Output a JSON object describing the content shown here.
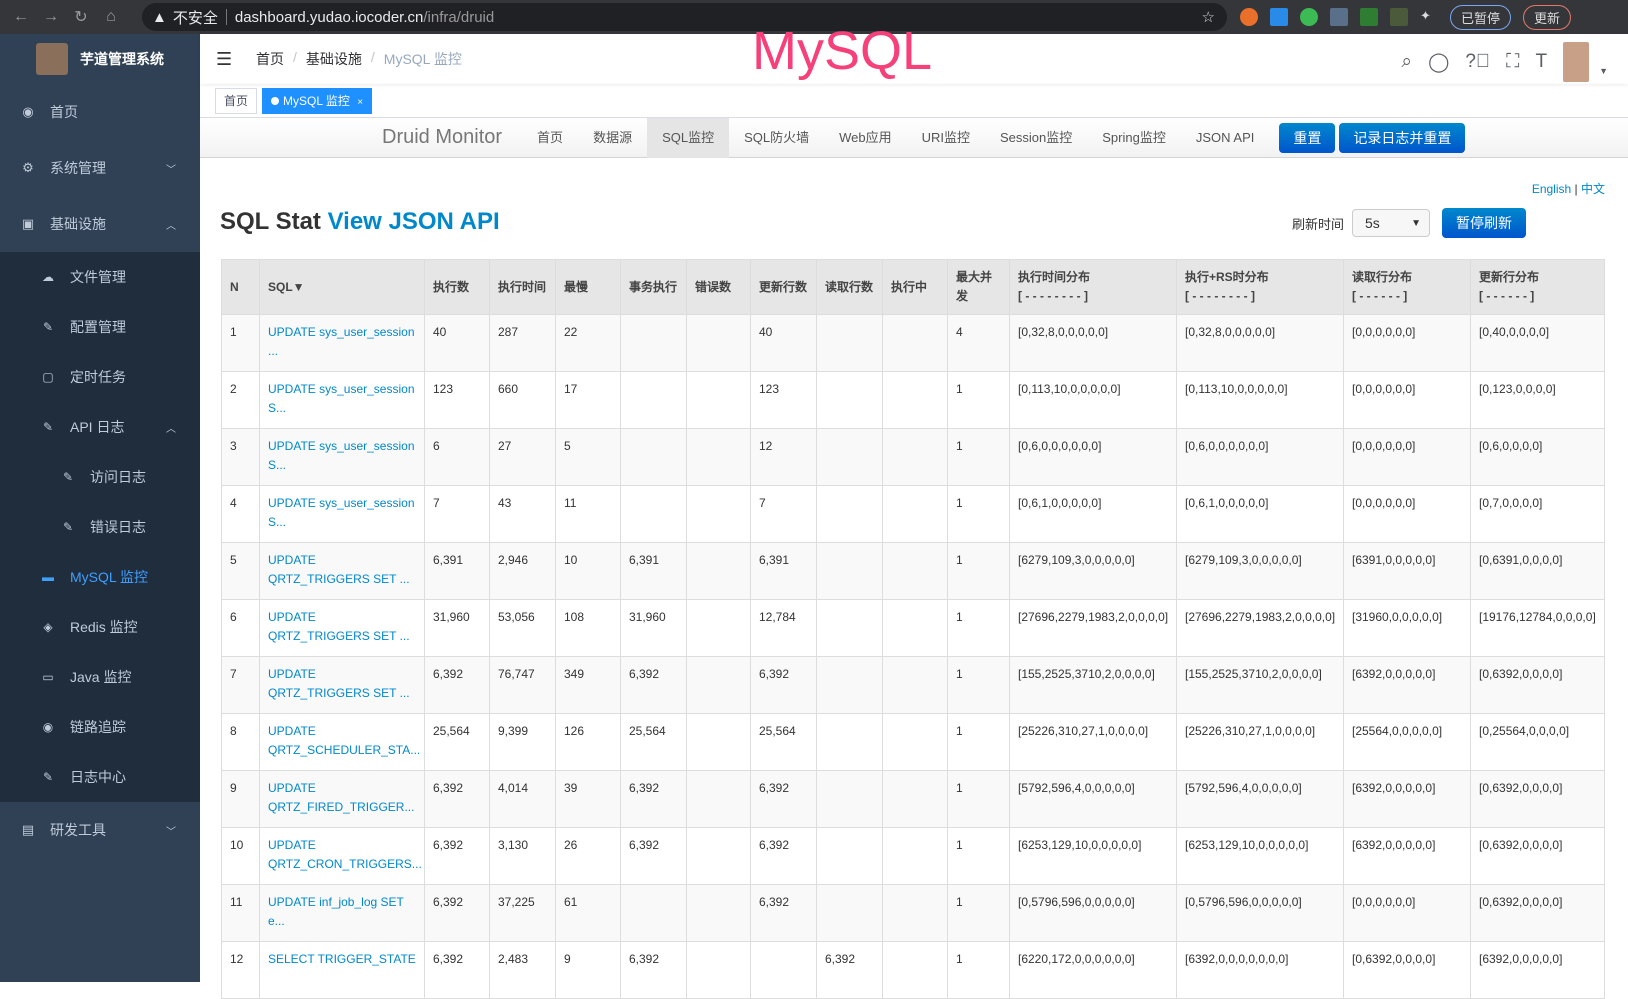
{
  "browser": {
    "security": "不安全",
    "url_host": "dashboard.yudao.iocoder.cn",
    "url_path": "/infra/druid",
    "paused": "已暂停",
    "update": "更新"
  },
  "sidebar": {
    "title": "芋道管理系统",
    "items": [
      {
        "label": "首页",
        "icon": "dashboard-icon"
      },
      {
        "label": "系统管理",
        "icon": "gear-icon"
      },
      {
        "label": "基础设施",
        "icon": "monitor-icon"
      }
    ],
    "sub": [
      {
        "label": "文件管理",
        "icon": "upload-icon"
      },
      {
        "label": "配置管理",
        "icon": "edit-icon"
      },
      {
        "label": "定时任务",
        "icon": "job-icon"
      },
      {
        "label": "API 日志",
        "icon": "log-icon"
      },
      {
        "label": "访问日志",
        "icon": "log-icon"
      },
      {
        "label": "错误日志",
        "icon": "log-icon"
      },
      {
        "label": "MySQL 监控",
        "icon": "db-icon"
      },
      {
        "label": "Redis 监控",
        "icon": "redis-icon"
      },
      {
        "label": "Java 监控",
        "icon": "java-icon"
      },
      {
        "label": "链路追踪",
        "icon": "eye-icon"
      },
      {
        "label": "日志中心",
        "icon": "log-icon"
      }
    ],
    "last": {
      "label": "研发工具",
      "icon": "toolbox-icon"
    }
  },
  "header": {
    "breadcrumb": [
      "首页",
      "基础设施",
      "MySQL 监控"
    ],
    "overlay_title": "MySQL"
  },
  "tags": [
    {
      "label": "首页"
    },
    {
      "label": "MySQL 监控"
    }
  ],
  "druid": {
    "brand": "Druid Monitor",
    "nav": [
      "首页",
      "数据源",
      "SQL监控",
      "SQL防火墙",
      "Web应用",
      "URI监控",
      "Session监控",
      "Spring监控",
      "JSON API"
    ],
    "reset": "重置",
    "log_reset": "记录日志并重置",
    "lang_en": "English",
    "lang_zh": "中文",
    "title": "SQL Stat",
    "title_link": "View JSON API",
    "refresh_label": "刷新时间",
    "refresh_value": "5s",
    "pause": "暂停刷新"
  },
  "table": {
    "headers": [
      "N",
      "SQL▼",
      "执行数",
      "执行时间",
      "最慢",
      "事务执行",
      "错误数",
      "更新行数",
      "读取行数",
      "执行中",
      "最大并发",
      "执行时间分布\n[ - - - - - - - - ]",
      "执行+RS时分布\n[ - - - - - - - - ]",
      "读取行分布\n[ - - - - - - ]",
      "更新行分布\n[ - - - - - - ]"
    ],
    "rows": [
      [
        "1",
        "UPDATE sys_user_session ...",
        "40",
        "287",
        "22",
        "",
        "",
        "40",
        "",
        "",
        "4",
        "[0,32,8,0,0,0,0,0]",
        "[0,32,8,0,0,0,0,0]",
        "[0,0,0,0,0,0]",
        "[0,40,0,0,0,0]"
      ],
      [
        "2",
        "UPDATE sys_user_session S...",
        "123",
        "660",
        "17",
        "",
        "",
        "123",
        "",
        "",
        "1",
        "[0,113,10,0,0,0,0,0]",
        "[0,113,10,0,0,0,0,0]",
        "[0,0,0,0,0,0]",
        "[0,123,0,0,0,0]"
      ],
      [
        "3",
        "UPDATE sys_user_session S...",
        "6",
        "27",
        "5",
        "",
        "",
        "12",
        "",
        "",
        "1",
        "[0,6,0,0,0,0,0,0]",
        "[0,6,0,0,0,0,0,0]",
        "[0,0,0,0,0,0]",
        "[0,6,0,0,0,0]"
      ],
      [
        "4",
        "UPDATE sys_user_session S...",
        "7",
        "43",
        "11",
        "",
        "",
        "7",
        "",
        "",
        "1",
        "[0,6,1,0,0,0,0,0]",
        "[0,6,1,0,0,0,0,0]",
        "[0,0,0,0,0,0]",
        "[0,7,0,0,0,0]"
      ],
      [
        "5",
        "UPDATE QRTZ_TRIGGERS SET ...",
        "6,391",
        "2,946",
        "10",
        "6,391",
        "",
        "6,391",
        "",
        "",
        "1",
        "[6279,109,3,0,0,0,0,0]",
        "[6279,109,3,0,0,0,0,0]",
        "[6391,0,0,0,0,0]",
        "[0,6391,0,0,0,0]"
      ],
      [
        "6",
        "UPDATE QRTZ_TRIGGERS SET ...",
        "31,960",
        "53,056",
        "108",
        "31,960",
        "",
        "12,784",
        "",
        "",
        "1",
        "[27696,2279,1983,2,0,0,0,0]",
        "[27696,2279,1983,2,0,0,0,0]",
        "[31960,0,0,0,0,0]",
        "[19176,12784,0,0,0,0]"
      ],
      [
        "7",
        "UPDATE QRTZ_TRIGGERS SET ...",
        "6,392",
        "76,747",
        "349",
        "6,392",
        "",
        "6,392",
        "",
        "",
        "1",
        "[155,2525,3710,2,0,0,0,0]",
        "[155,2525,3710,2,0,0,0,0]",
        "[6392,0,0,0,0,0]",
        "[0,6392,0,0,0,0]"
      ],
      [
        "8",
        "UPDATE QRTZ_SCHEDULER_STA...",
        "25,564",
        "9,399",
        "126",
        "25,564",
        "",
        "25,564",
        "",
        "",
        "1",
        "[25226,310,27,1,0,0,0,0]",
        "[25226,310,27,1,0,0,0,0]",
        "[25564,0,0,0,0,0]",
        "[0,25564,0,0,0,0]"
      ],
      [
        "9",
        "UPDATE QRTZ_FIRED_TRIGGER...",
        "6,392",
        "4,014",
        "39",
        "6,392",
        "",
        "6,392",
        "",
        "",
        "1",
        "[5792,596,4,0,0,0,0,0]",
        "[5792,596,4,0,0,0,0,0]",
        "[6392,0,0,0,0,0]",
        "[0,6392,0,0,0,0]"
      ],
      [
        "10",
        "UPDATE QRTZ_CRON_TRIGGERS...",
        "6,392",
        "3,130",
        "26",
        "6,392",
        "",
        "6,392",
        "",
        "",
        "1",
        "[6253,129,10,0,0,0,0,0]",
        "[6253,129,10,0,0,0,0,0]",
        "[6392,0,0,0,0,0]",
        "[0,6392,0,0,0,0]"
      ],
      [
        "11",
        "UPDATE inf_job_log SET e...",
        "6,392",
        "37,225",
        "61",
        "",
        "",
        "6,392",
        "",
        "",
        "1",
        "[0,5796,596,0,0,0,0,0]",
        "[0,5796,596,0,0,0,0,0]",
        "[0,0,0,0,0,0]",
        "[0,6392,0,0,0,0]"
      ],
      [
        "12",
        "SELECT TRIGGER_STATE",
        "6,392",
        "2,483",
        "9",
        "6,392",
        "",
        "",
        "6,392",
        "",
        "1",
        "[6220,172,0,0,0,0,0,0]",
        "[6392,0,0,0,0,0,0,0]",
        "[0,6392,0,0,0,0]",
        "[6392,0,0,0,0,0]"
      ]
    ]
  }
}
